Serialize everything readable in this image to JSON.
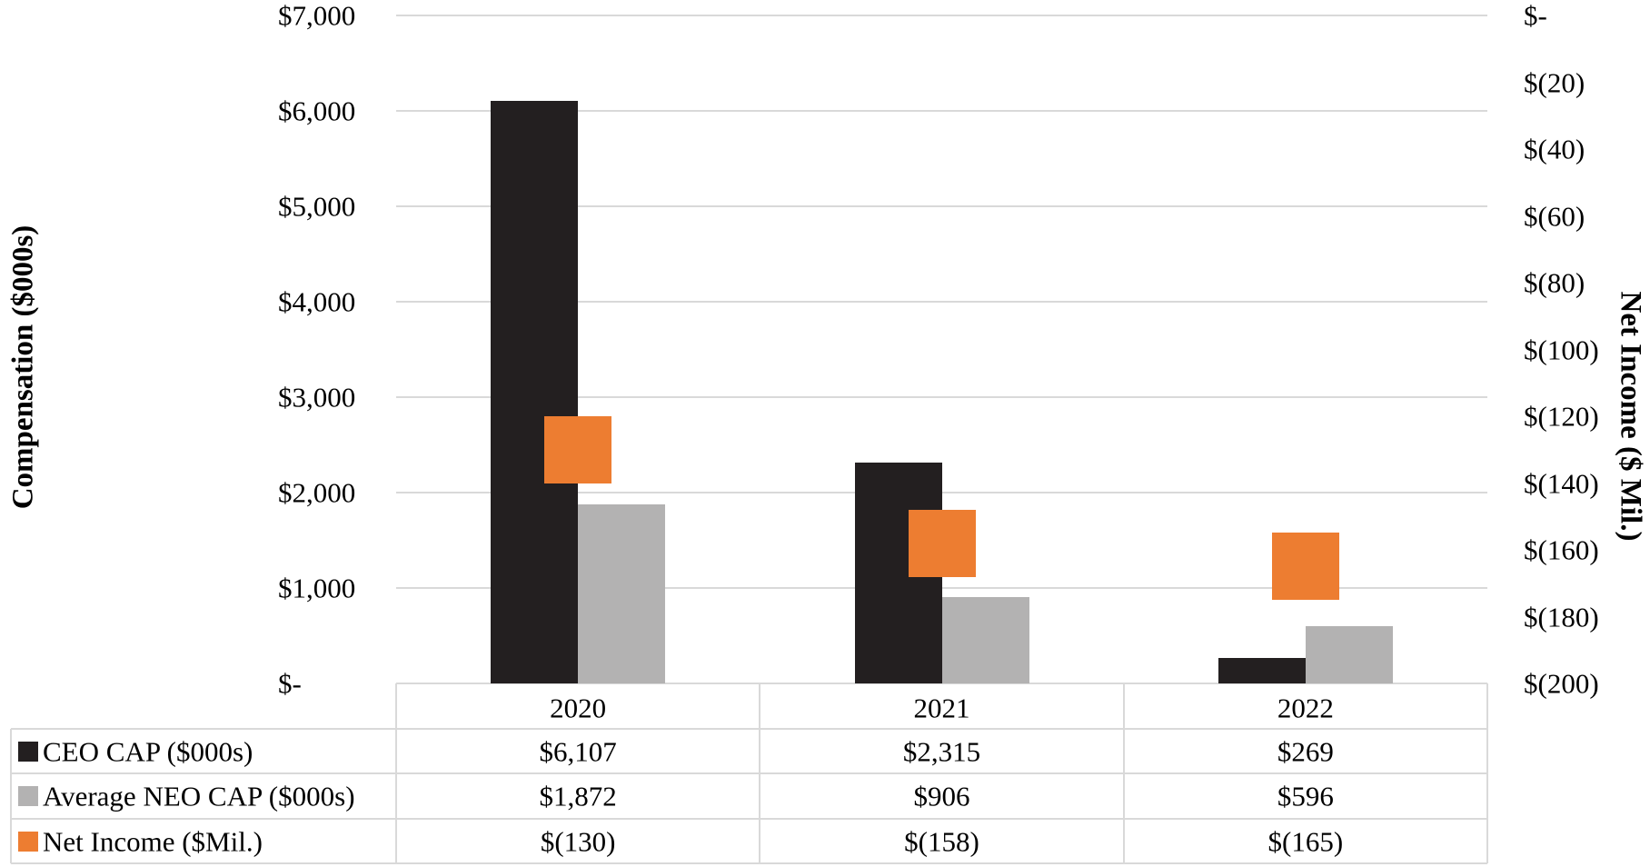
{
  "chart_data": {
    "type": "bar",
    "categories": [
      "2020",
      "2021",
      "2022"
    ],
    "left_axis": {
      "title": "Compensation ($000s)",
      "min": 0,
      "max": 7000,
      "step": 1000,
      "tick_labels": [
        "$7,000",
        "$6,000",
        "$5,000",
        "$4,000",
        "$3,000",
        "$2,000",
        "$1,000",
        "$-"
      ]
    },
    "right_axis": {
      "title": "Net Income ($ Mil.)",
      "min": -200,
      "max": 0,
      "step": 20,
      "tick_labels": [
        "$-",
        "$(20)",
        "$(40)",
        "$(60)",
        "$(80)",
        "$(100)",
        "$(120)",
        "$(140)",
        "$(160)",
        "$(180)",
        "$(200)"
      ]
    },
    "series": [
      {
        "name": "CEO CAP ($000s)",
        "axis": "left",
        "mark": "bar",
        "color": "#231f20",
        "values": [
          6107,
          2315,
          269
        ],
        "value_labels": [
          "$6,107",
          "$2,315",
          "$269"
        ]
      },
      {
        "name": "Average NEO CAP ($000s)",
        "axis": "left",
        "mark": "bar",
        "color": "#b3b2b2",
        "values": [
          1872,
          906,
          596
        ],
        "value_labels": [
          "$1,872",
          "$906",
          "$596"
        ]
      },
      {
        "name": "Net Income ($Mil.)",
        "axis": "right",
        "mark": "square",
        "color": "#ed7d31",
        "values": [
          -130,
          -158,
          -165
        ],
        "value_labels": [
          "$(130)",
          "$(158)",
          "$(165)"
        ]
      }
    ],
    "grid": true,
    "grid_color": "#d9d9d9",
    "text_color": "#000000",
    "legend_position": "table-left"
  }
}
